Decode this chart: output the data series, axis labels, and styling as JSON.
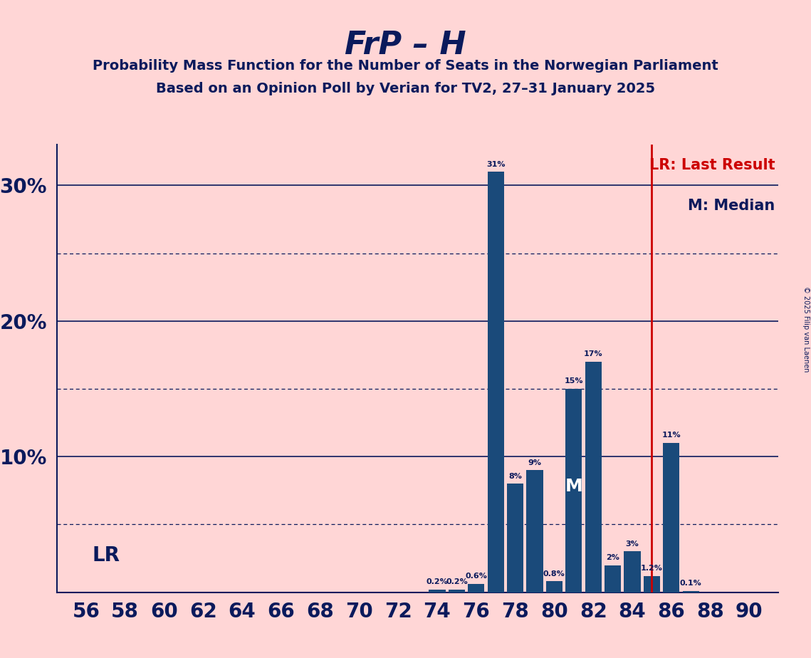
{
  "title": "FrP – H",
  "subtitle1": "Probability Mass Function for the Number of Seats in the Norwegian Parliament",
  "subtitle2": "Based on an Opinion Poll by Verian for TV2, 27–31 January 2025",
  "copyright": "© 2025 Filip van Laenen",
  "lr_label": "LR: Last Result",
  "m_label": "M: Median",
  "lr_line": 85,
  "median_seat": 81,
  "background_color": "#ffd6d6",
  "bar_color": "#1a4a7a",
  "lr_color": "#cc0000",
  "text_color": "#0a1a5c",
  "seats": [
    56,
    57,
    58,
    59,
    60,
    61,
    62,
    63,
    64,
    65,
    66,
    67,
    68,
    69,
    70,
    71,
    72,
    73,
    74,
    75,
    76,
    77,
    78,
    79,
    80,
    81,
    82,
    83,
    84,
    85,
    86,
    87,
    88,
    89,
    90
  ],
  "probs": [
    0.0,
    0.0,
    0.0,
    0.0,
    0.0,
    0.0,
    0.0,
    0.0,
    0.0,
    0.0,
    0.0,
    0.0,
    0.0,
    0.0,
    0.0,
    0.0,
    0.0,
    0.0,
    0.2,
    0.2,
    0.6,
    31.0,
    8.0,
    9.0,
    0.8,
    15.0,
    17.0,
    2.0,
    3.0,
    1.2,
    11.0,
    0.1,
    0.0,
    0.0,
    0.0
  ],
  "xtick_seats": [
    56,
    58,
    60,
    62,
    64,
    66,
    68,
    70,
    72,
    74,
    76,
    78,
    80,
    82,
    84,
    86,
    88,
    90
  ],
  "ylim": [
    0,
    33
  ],
  "solid_yticks": [
    10,
    20,
    30
  ],
  "dotted_yticks": [
    5,
    15,
    25
  ],
  "figsize": [
    11.39,
    9.24
  ],
  "dpi": 100
}
